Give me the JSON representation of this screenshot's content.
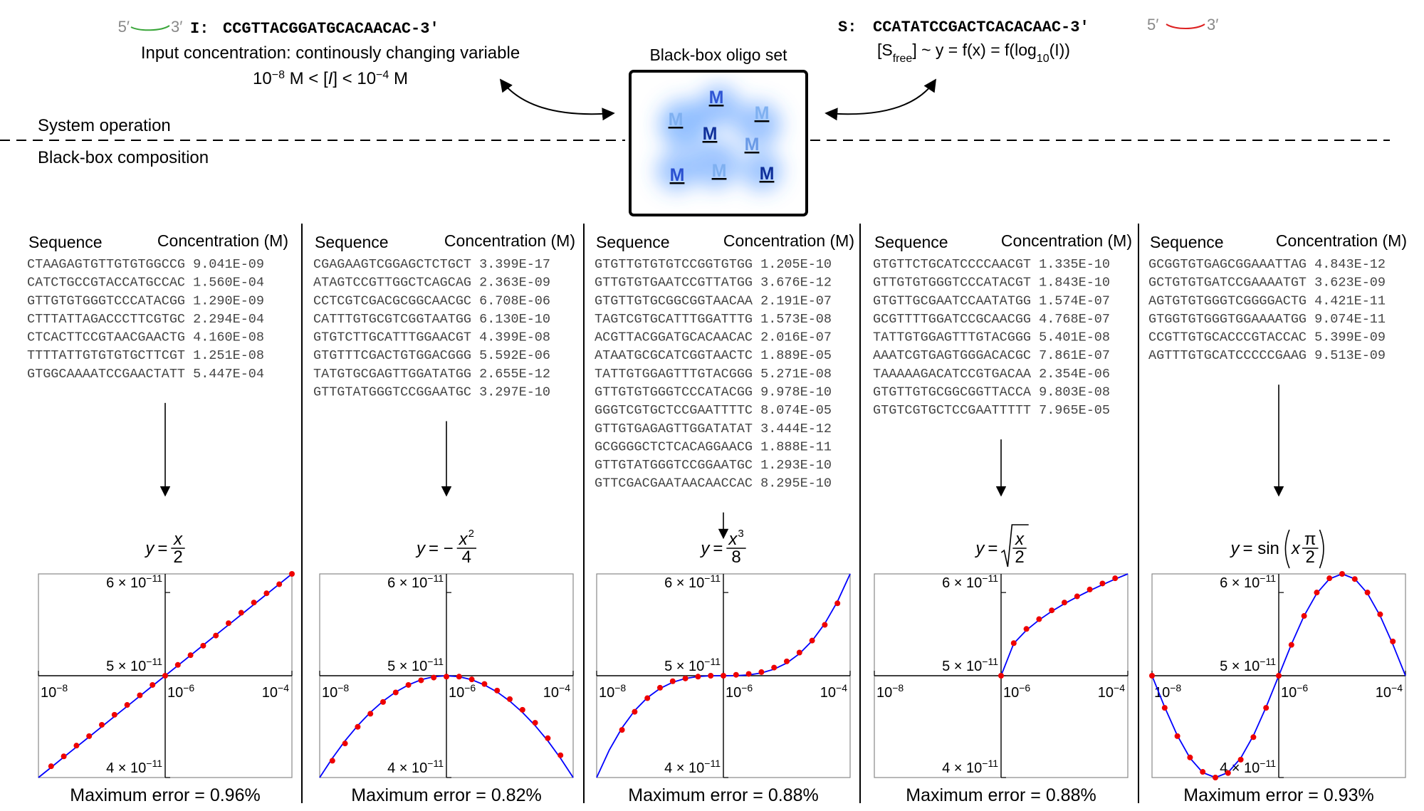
{
  "top": {
    "input_strand": {
      "five": "5′",
      "three": "3′",
      "label": "I:",
      "sequence": "CCGTTACGGATGCACAACAC-3′"
    },
    "input_desc": "Input concentration: continously changing variable",
    "range": [
      "10",
      "−8",
      " M < [",
      "I",
      "] < 10",
      "−4",
      " M"
    ],
    "output_strand": {
      "label": "S:",
      "sequence": "CCATATCCGACTCACACAAC-3′",
      "five": "5′",
      "three": "3′"
    },
    "output_eq": [
      "[S",
      "free",
      "] ~ y = f(x) = f(log",
      "10",
      "(I))"
    ],
    "box_title": "Black-box oligo set",
    "box_labels": [
      "M",
      "M",
      "M",
      "M",
      "M",
      "M",
      "M",
      "M"
    ],
    "upper_label": "System operation",
    "lower_label": "Black-box composition"
  },
  "panels": [
    {
      "header": [
        "Sequence",
        "Concentration (M)"
      ],
      "rows": [
        [
          "CTAAGAGTGTTGTGTGGCCG",
          "9.041E-09"
        ],
        [
          "CATCTGCCGTACCATGCCAC",
          "1.560E-04"
        ],
        [
          "GTTGTGTGGGTCCCATACGG",
          "1.290E-09"
        ],
        [
          "CTTTATTAGACCCTTCGTGC",
          "2.294E-04"
        ],
        [
          "CTCACTTCCGTAACGAACTG",
          "4.160E-08"
        ],
        [
          "TTTTATTGTGTGTGCTTCGT",
          "1.251E-08"
        ],
        [
          "GTGGCAAAATCCGAACTATT",
          "5.447E-04"
        ]
      ],
      "formula": {
        "var": "y",
        "op": "=",
        "num": "x",
        "den": "2"
      },
      "error": "Maximum error = 0.96%"
    },
    {
      "header": [
        "Sequence",
        "Concentration (M)"
      ],
      "rows": [
        [
          "CGAGAAGTCGGAGCTCTGCT",
          "3.399E-17"
        ],
        [
          "ATAGTCCGTTGGCTCAGCAG",
          "2.363E-09"
        ],
        [
          "CCTCGTCGACGCGGCAACGC",
          "6.708E-06"
        ],
        [
          "CATTTGTGCGTCGGTAATGG",
          "6.130E-10"
        ],
        [
          "GTGTCTTGCATTTGGAACGT",
          "4.399E-08"
        ],
        [
          "GTGTTTCGACTGTGGACGGG",
          "5.592E-06"
        ],
        [
          "TATGTGCGAGTTGGATATGG",
          "2.655E-12"
        ],
        [
          "GTTGTATGGGTCCGGAATGC",
          "3.297E-10"
        ]
      ],
      "formula": {
        "var": "y",
        "op": "= −",
        "num": "x",
        "sup": "2",
        "den": "4"
      },
      "error": "Maximum error = 0.82%"
    },
    {
      "header": [
        "Sequence",
        "Concentration (M)"
      ],
      "rows": [
        [
          "GTGTTGTGTGTCCGGTGTGG",
          "1.205E-10"
        ],
        [
          "GTTGTGTGAATCCGTTATGG",
          "3.676E-12"
        ],
        [
          "GTGTTGTGCGGCGGTAACAA",
          "2.191E-07"
        ],
        [
          "TAGTCGTGCATTTGGATTTG",
          "1.573E-08"
        ],
        [
          "ACGTTACGGATGCACAACAC",
          "2.016E-07"
        ],
        [
          "ATAATGCGCATCGGTAACTC",
          "1.889E-05"
        ],
        [
          "TATTGTGGAGTTTGTACGGG",
          "5.271E-08"
        ],
        [
          "GTTGTGTGGGTCCCATACGG",
          "9.978E-10"
        ],
        [
          "GGGTCGTGCTCCGAATTTTC",
          "8.074E-05"
        ],
        [
          "GTTGTGAGAGTTGGATATAT",
          "3.444E-12"
        ],
        [
          "GCGGGGCTCTCACAGGAACG",
          "1.888E-11"
        ],
        [
          "GTTGTATGGGTCCGGAATGC",
          "1.293E-10"
        ],
        [
          "GTTCGACGAATAACAACCAC",
          "8.295E-10"
        ]
      ],
      "formula": {
        "var": "y",
        "op": "=",
        "num": "x",
        "sup": "3",
        "den": "8"
      },
      "error": "Maximum error = 0.88%"
    },
    {
      "header": [
        "Sequence",
        "Concentration (M)"
      ],
      "rows": [
        [
          "GTGTTCTGCATCCCCAACGT",
          "1.335E-10"
        ],
        [
          "GTTGTGTGGGTCCCATACGT",
          "1.843E-10"
        ],
        [
          "GTGTTGCGAATCCAATATGG",
          "1.574E-07"
        ],
        [
          "GCGTTTTGGATCCGCAACGG",
          "4.768E-07"
        ],
        [
          "TATTGTGGAGTTTGTACGGG",
          "5.401E-08"
        ],
        [
          "AAATCGTGAGTGGGACACGC",
          "7.861E-07"
        ],
        [
          "TAAAAAGACATCCGTGACAA",
          "2.354E-06"
        ],
        [
          "GTGTTGTGCGGCGGTTACCA",
          "9.803E-08"
        ],
        [
          "GTGTCGTGCTCCGAATTTTT",
          "7.965E-05"
        ]
      ],
      "formula": {
        "var": "y",
        "op": "=",
        "num": "x",
        "den": "2",
        "sqrt": true
      },
      "error": "Maximum error = 0.88%"
    },
    {
      "header": [
        "Sequence",
        "Concentration (M)"
      ],
      "rows": [
        [
          "GCGGTGTGAGCGGAAATTAG",
          "4.843E-12"
        ],
        [
          "GCTGTGTGATCCGAAAATGT",
          "3.623E-09"
        ],
        [
          "AGTGTGTGGGTCGGGGACTG",
          "4.421E-11"
        ],
        [
          "GTGGTGTGGGTGGAAAATGG",
          "9.074E-11"
        ],
        [
          "CCGTTGTGCACCCGTACCAC",
          "5.399E-09"
        ],
        [
          "AGTTTGTGCATCCCCCGAAG",
          "9.513E-09"
        ]
      ],
      "formula": {
        "var": "y",
        "op": "= sin",
        "pre": "x",
        "num": "π",
        "den": "2",
        "paren": true
      },
      "error": "Maximum error = 0.93%"
    }
  ],
  "chart_data": [
    {
      "type": "line",
      "xscale": "log",
      "yscale": "log",
      "xlim": [
        1e-08,
        0.0001
      ],
      "ylim": [
        4e-11,
        6.25e-11
      ],
      "axes_origin": [
        1e-06,
        5e-11
      ],
      "xticks": [
        {
          "value": 1e-08,
          "label": "10",
          "exp": "−8"
        },
        {
          "value": 1e-06,
          "label": "10",
          "exp": "−6"
        },
        {
          "value": 0.0001,
          "label": "10",
          "exp": "−4"
        }
      ],
      "yticks": [
        {
          "value": 4e-11,
          "label": "4 × 10",
          "exp": "−11"
        },
        {
          "value": 5e-11,
          "label": "5 × 10",
          "exp": "−11"
        },
        {
          "value": 6e-11,
          "label": "6 × 10",
          "exp": "−11"
        }
      ],
      "series": [
        {
          "color": "#0000ff",
          "x": [
            1e-08,
            1.585e-08,
            2.512e-08,
            3.981e-08,
            6.31e-08,
            1e-07,
            1.585e-07,
            2.512e-07,
            3.981e-07,
            6.31e-07,
            1e-06,
            1.585e-06,
            2.512e-06,
            3.981e-06,
            6.31e-06,
            1e-05,
            1.585e-05,
            2.512e-05,
            3.981e-05,
            6.31e-05,
            0.0001
          ],
          "values": [
            4e-11,
            4.09e-11,
            4.183e-11,
            4.277e-11,
            4.373e-11,
            4.472e-11,
            4.573e-11,
            4.676e-11,
            4.782e-11,
            4.89e-11,
            5e-11,
            5.113e-11,
            5.228e-11,
            5.346e-11,
            5.467e-11,
            5.59e-11,
            5.716e-11,
            5.845e-11,
            5.977e-11,
            6.112e-11,
            6.25e-11
          ]
        },
        {
          "type": "scatter",
          "color": "#ee0000",
          "x": [
            1.585e-08,
            2.512e-08,
            3.981e-08,
            6.31e-08,
            1e-07,
            1.585e-07,
            2.512e-07,
            3.981e-07,
            6.31e-07,
            1e-06,
            1.585e-06,
            2.512e-06,
            3.981e-06,
            6.31e-06,
            1e-05,
            1.585e-05,
            2.512e-05,
            3.981e-05,
            6.31e-05,
            0.0001
          ],
          "values": [
            4.1e-11,
            4.19e-11,
            4.29e-11,
            4.38e-11,
            4.49e-11,
            4.59e-11,
            4.69e-11,
            4.79e-11,
            4.9e-11,
            5e-11,
            5.12e-11,
            5.23e-11,
            5.34e-11,
            5.46e-11,
            5.61e-11,
            5.74e-11,
            5.87e-11,
            5.99e-11,
            6.11e-11,
            6.25e-11
          ]
        }
      ]
    },
    {
      "type": "line",
      "xscale": "log",
      "yscale": "log",
      "xlim": [
        1e-08,
        0.0001
      ],
      "ylim": [
        4e-11,
        6.25e-11
      ],
      "axes_origin": [
        1e-06,
        5e-11
      ],
      "xticks": [
        {
          "value": 1e-08,
          "label": "10",
          "exp": "−8"
        },
        {
          "value": 1e-06,
          "label": "10",
          "exp": "−6"
        },
        {
          "value": 0.0001,
          "label": "10",
          "exp": "−4"
        }
      ],
      "yticks": [
        {
          "value": 4e-11,
          "label": "4 × 10",
          "exp": "−11"
        },
        {
          "value": 5e-11,
          "label": "5 × 10",
          "exp": "−11"
        },
        {
          "value": 6e-11,
          "label": "6 × 10",
          "exp": "−11"
        }
      ],
      "series": [
        {
          "color": "#0000ff",
          "x": [
            1e-08,
            1.585e-08,
            2.512e-08,
            3.981e-08,
            6.31e-08,
            1e-07,
            1.585e-07,
            2.512e-07,
            3.981e-07,
            6.31e-07,
            1e-06,
            1.585e-06,
            2.512e-06,
            3.981e-06,
            6.31e-06,
            1e-05,
            1.585e-05,
            2.512e-05,
            3.981e-05,
            6.31e-05,
            0.0001
          ],
          "values": [
            4e-11,
            4.173e-11,
            4.335e-11,
            4.482e-11,
            4.614e-11,
            4.729e-11,
            4.825e-11,
            4.9e-11,
            4.956e-11,
            4.989e-11,
            5e-11,
            4.989e-11,
            4.956e-11,
            4.9e-11,
            4.825e-11,
            4.729e-11,
            4.614e-11,
            4.482e-11,
            4.335e-11,
            4.173e-11,
            4e-11
          ]
        },
        {
          "type": "scatter",
          "color": "#ee0000",
          "x": [
            1.585e-08,
            2.512e-08,
            3.981e-08,
            6.31e-08,
            1e-07,
            1.585e-07,
            2.512e-07,
            3.981e-07,
            6.31e-07,
            1e-06,
            1.585e-06,
            2.512e-06,
            3.981e-06,
            6.31e-06,
            1e-05,
            1.585e-05,
            2.512e-05,
            3.981e-05,
            6.31e-05
          ],
          "values": [
            4.15e-11,
            4.31e-11,
            4.47e-11,
            4.6e-11,
            4.72e-11,
            4.82e-11,
            4.9e-11,
            4.95e-11,
            4.98e-11,
            4.99e-11,
            4.99e-11,
            4.96e-11,
            4.91e-11,
            4.84e-11,
            4.75e-11,
            4.64e-11,
            4.51e-11,
            4.36e-11,
            4.2e-11
          ]
        }
      ]
    },
    {
      "type": "line",
      "xscale": "log",
      "yscale": "log",
      "xlim": [
        1e-08,
        0.0001
      ],
      "ylim": [
        4e-11,
        6.25e-11
      ],
      "axes_origin": [
        1e-06,
        5e-11
      ],
      "xticks": [
        {
          "value": 1e-08,
          "label": "10",
          "exp": "−8"
        },
        {
          "value": 1e-06,
          "label": "10",
          "exp": "−6"
        },
        {
          "value": 0.0001,
          "label": "10",
          "exp": "−4"
        }
      ],
      "yticks": [
        {
          "value": 4e-11,
          "label": "4 × 10",
          "exp": "−11"
        },
        {
          "value": 5e-11,
          "label": "5 × 10",
          "exp": "−11"
        },
        {
          "value": 6e-11,
          "label": "6 × 10",
          "exp": "−11"
        }
      ],
      "series": [
        {
          "color": "#0000ff",
          "x": [
            1e-08,
            1.585e-08,
            2.512e-08,
            3.981e-08,
            6.31e-08,
            1e-07,
            1.585e-07,
            2.512e-07,
            3.981e-07,
            6.31e-07,
            1e-06,
            1.585e-06,
            2.512e-06,
            3.981e-06,
            6.31e-06,
            1e-05,
            1.585e-05,
            2.512e-05,
            3.981e-05,
            6.31e-05,
            0.0001
          ],
          "values": [
            4e-11,
            4.249e-11,
            4.46e-11,
            4.632e-11,
            4.765e-11,
            4.862e-11,
            4.929e-11,
            4.97e-11,
            4.991e-11,
            4.999e-11,
            5e-11,
            5.001e-11,
            5.009e-11,
            5.03e-11,
            5.072e-11,
            5.141e-11,
            5.247e-11,
            5.397e-11,
            5.605e-11,
            5.883e-11,
            6.25e-11
          ]
        },
        {
          "type": "scatter",
          "color": "#ee0000",
          "x": [
            2.512e-08,
            3.981e-08,
            6.31e-08,
            1e-07,
            1.585e-07,
            2.512e-07,
            3.981e-07,
            6.31e-07,
            1e-06,
            1.585e-06,
            2.512e-06,
            3.981e-06,
            6.31e-06,
            1e-05,
            1.585e-05,
            2.512e-05,
            3.981e-05,
            6.31e-05
          ],
          "values": [
            4.44e-11,
            4.62e-11,
            4.76e-11,
            4.87e-11,
            4.94e-11,
            4.97e-11,
            4.99e-11,
            5e-11,
            5e-11,
            5.01e-11,
            5.02e-11,
            5.04e-11,
            5.09e-11,
            5.16e-11,
            5.26e-11,
            5.4e-11,
            5.59e-11,
            5.86e-11
          ]
        }
      ]
    },
    {
      "type": "line",
      "xscale": "log",
      "yscale": "log",
      "xlim": [
        1e-08,
        0.0001
      ],
      "ylim": [
        4e-11,
        6.25e-11
      ],
      "axes_origin": [
        1e-06,
        5e-11
      ],
      "xticks": [
        {
          "value": 1e-08,
          "label": "10",
          "exp": "−8"
        },
        {
          "value": 1e-06,
          "label": "10",
          "exp": "−6"
        },
        {
          "value": 0.0001,
          "label": "10",
          "exp": "−4"
        }
      ],
      "yticks": [
        {
          "value": 4e-11,
          "label": "4 × 10",
          "exp": "−11"
        },
        {
          "value": 5e-11,
          "label": "5 × 10",
          "exp": "−11"
        },
        {
          "value": 6e-11,
          "label": "6 × 10",
          "exp": "−11"
        }
      ],
      "series": [
        {
          "color": "#0000ff",
          "x": [
            1e-06,
            1.585e-06,
            2.512e-06,
            3.981e-06,
            6.31e-06,
            1e-05,
            1.585e-05,
            2.512e-05,
            3.981e-05,
            6.31e-05,
            0.0001
          ],
          "values": [
            5e-11,
            5.366e-11,
            5.525e-11,
            5.65e-11,
            5.758e-11,
            5.855e-11,
            5.943e-11,
            6.026e-11,
            6.104e-11,
            6.179e-11,
            6.25e-11
          ]
        },
        {
          "type": "scatter",
          "color": "#ee0000",
          "x": [
            1e-06,
            1.585e-06,
            2.512e-06,
            3.981e-06,
            6.31e-06,
            1e-05,
            1.585e-05,
            2.512e-05,
            3.981e-05,
            6.31e-05
          ],
          "values": [
            5e-11,
            5.37e-11,
            5.54e-11,
            5.66e-11,
            5.77e-11,
            5.87e-11,
            5.95e-11,
            6.04e-11,
            6.12e-11,
            6.19e-11
          ]
        }
      ]
    },
    {
      "type": "line",
      "xscale": "log",
      "yscale": "log",
      "xlim": [
        1e-08,
        0.0001
      ],
      "ylim": [
        4e-11,
        6.25e-11
      ],
      "axes_origin": [
        1e-06,
        5e-11
      ],
      "xticks": [
        {
          "value": 1e-08,
          "label": "10",
          "exp": "−8"
        },
        {
          "value": 1e-06,
          "label": "10",
          "exp": "−6"
        },
        {
          "value": 0.0001,
          "label": "10",
          "exp": "−4"
        }
      ],
      "yticks": [
        {
          "value": 4e-11,
          "label": "4 × 10",
          "exp": "−11"
        },
        {
          "value": 5e-11,
          "label": "5 × 10",
          "exp": "−11"
        },
        {
          "value": 6e-11,
          "label": "6 × 10",
          "exp": "−11"
        }
      ],
      "series": [
        {
          "color": "#0000ff",
          "x": [
            1e-08,
            1.585e-08,
            2.512e-08,
            3.981e-08,
            6.31e-08,
            1e-07,
            1.585e-07,
            2.512e-07,
            3.981e-07,
            6.31e-07,
            1e-06,
            1.585e-06,
            2.512e-06,
            3.981e-06,
            6.31e-06,
            1e-05,
            1.585e-05,
            2.512e-05,
            3.981e-05,
            6.31e-05,
            0.0001
          ],
          "values": [
            5e-11,
            4.667e-11,
            4.385e-11,
            4.174e-11,
            4.044e-11,
            4e-11,
            4.044e-11,
            4.174e-11,
            4.385e-11,
            4.667e-11,
            5e-11,
            5.357e-11,
            5.701e-11,
            5.989e-11,
            6.182e-11,
            6.25e-11,
            6.182e-11,
            5.989e-11,
            5.701e-11,
            5.357e-11,
            5e-11
          ]
        },
        {
          "type": "scatter",
          "color": "#ee0000",
          "x": [
            1e-08,
            1.585e-08,
            2.512e-08,
            3.981e-08,
            6.31e-08,
            1e-07,
            1.585e-07,
            2.512e-07,
            3.981e-07,
            6.31e-07,
            1e-06,
            1.585e-06,
            2.512e-06,
            3.981e-06,
            6.31e-06,
            1e-05,
            1.585e-05,
            2.512e-05,
            3.981e-05,
            6.31e-05
          ],
          "values": [
            5e-11,
            4.66e-11,
            4.38e-11,
            4.18e-11,
            4.05e-11,
            4e-11,
            4.04e-11,
            4.16e-11,
            4.37e-11,
            4.66e-11,
            5e-11,
            5.35e-11,
            5.7e-11,
            6e-11,
            6.19e-11,
            6.25e-11,
            6.18e-11,
            6e-11,
            5.72e-11,
            5.39e-11
          ]
        }
      ]
    }
  ]
}
